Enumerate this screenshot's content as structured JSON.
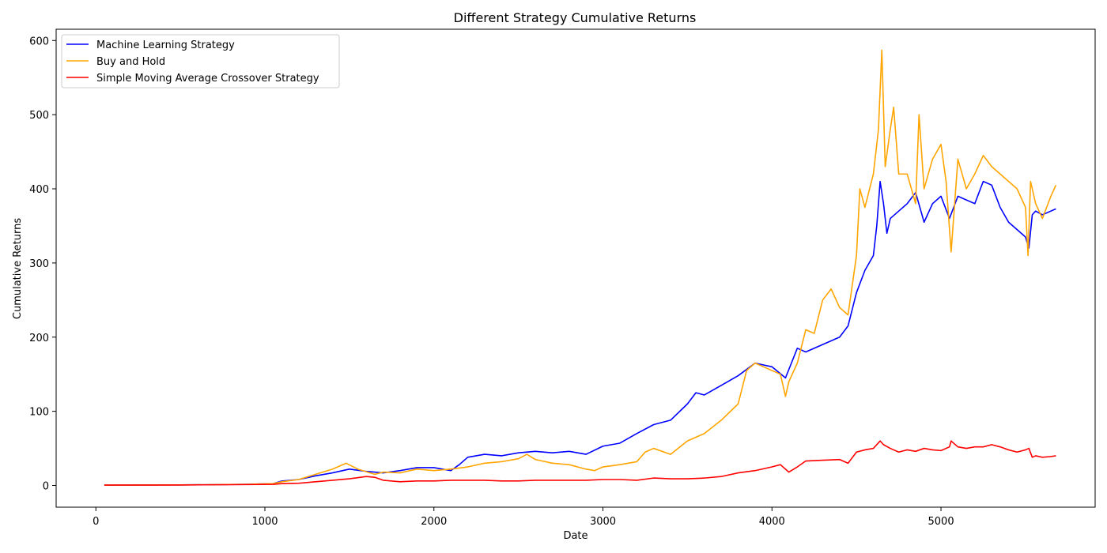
{
  "chart_data": {
    "type": "line",
    "title": "Different Strategy Cumulative Returns",
    "xlabel": "Date",
    "ylabel": "Cumulative Returns",
    "xlim": [
      -235,
      5912
    ],
    "ylim": [
      -29.3,
      615.2
    ],
    "xticks": [
      0,
      1000,
      2000,
      3000,
      4000,
      5000
    ],
    "yticks": [
      0,
      100,
      200,
      300,
      400,
      500,
      600
    ],
    "grid": false,
    "legend_position": "upper left",
    "series": [
      {
        "name": "Machine Learning Strategy",
        "color": "#0000ff",
        "x": [
          50,
          500,
          900,
          1050,
          1100,
          1200,
          1300,
          1400,
          1500,
          1600,
          1700,
          1800,
          1900,
          2000,
          2100,
          2150,
          2200,
          2300,
          2400,
          2500,
          2600,
          2700,
          2800,
          2900,
          3000,
          3100,
          3200,
          3300,
          3400,
          3500,
          3550,
          3600,
          3700,
          3800,
          3900,
          4000,
          4080,
          4150,
          4200,
          4300,
          4400,
          4450,
          4500,
          4550,
          4600,
          4620,
          4640,
          4660,
          4680,
          4700,
          4750,
          4800,
          4850,
          4900,
          4950,
          5000,
          5050,
          5100,
          5150,
          5200,
          5250,
          5300,
          5350,
          5400,
          5450,
          5500,
          5520,
          5540,
          5560,
          5600,
          5650,
          5680
        ],
        "y": [
          0.5,
          0.7,
          1.5,
          2.5,
          6,
          8,
          13,
          17,
          22,
          19,
          17,
          20,
          24,
          24,
          20,
          28,
          38,
          42,
          40,
          44,
          46,
          44,
          46,
          42,
          53,
          57,
          70,
          82,
          88,
          110,
          125,
          122,
          135,
          148,
          165,
          160,
          145,
          185,
          180,
          190,
          200,
          215,
          260,
          290,
          310,
          350,
          410,
          380,
          340,
          360,
          370,
          380,
          395,
          355,
          380,
          390,
          360,
          390,
          385,
          380,
          410,
          405,
          375,
          355,
          345,
          335,
          320,
          365,
          370,
          365,
          370,
          373
        ]
      },
      {
        "name": "Buy and Hold",
        "color": "#ffa500",
        "x": [
          50,
          500,
          900,
          1050,
          1100,
          1200,
          1300,
          1400,
          1480,
          1550,
          1650,
          1700,
          1800,
          1900,
          2000,
          2100,
          2200,
          2300,
          2400,
          2500,
          2550,
          2600,
          2700,
          2800,
          2900,
          2950,
          3000,
          3100,
          3200,
          3250,
          3300,
          3400,
          3500,
          3600,
          3700,
          3800,
          3850,
          3900,
          3950,
          4000,
          4050,
          4080,
          4100,
          4150,
          4200,
          4250,
          4300,
          4350,
          4400,
          4450,
          4500,
          4520,
          4550,
          4600,
          4630,
          4650,
          4670,
          4700,
          4720,
          4750,
          4800,
          4850,
          4870,
          4900,
          4950,
          5000,
          5030,
          5060,
          5100,
          5150,
          5200,
          5250,
          5300,
          5350,
          5400,
          5450,
          5500,
          5515,
          5530,
          5560,
          5600,
          5650,
          5680
        ],
        "y": [
          0.5,
          0.7,
          1.5,
          2.5,
          5,
          8,
          15,
          22,
          30,
          22,
          15,
          18,
          17,
          22,
          20,
          22,
          25,
          30,
          32,
          36,
          42,
          35,
          30,
          28,
          22,
          20,
          25,
          28,
          32,
          45,
          50,
          42,
          60,
          70,
          88,
          110,
          155,
          165,
          160,
          155,
          150,
          120,
          140,
          165,
          210,
          205,
          250,
          265,
          240,
          230,
          310,
          400,
          375,
          420,
          480,
          587,
          430,
          480,
          510,
          420,
          420,
          380,
          500,
          400,
          440,
          460,
          410,
          315,
          440,
          400,
          420,
          445,
          430,
          420,
          410,
          400,
          375,
          310,
          410,
          380,
          360,
          390,
          405
        ]
      },
      {
        "name": "Simple Moving Average Crossover Strategy",
        "color": "#ff0000",
        "x": [
          50,
          500,
          900,
          1050,
          1100,
          1200,
          1300,
          1400,
          1500,
          1600,
          1650,
          1700,
          1800,
          1900,
          2000,
          2100,
          2200,
          2300,
          2400,
          2500,
          2600,
          2700,
          2800,
          2900,
          3000,
          3100,
          3200,
          3300,
          3400,
          3500,
          3600,
          3700,
          3800,
          3900,
          4000,
          4050,
          4100,
          4150,
          4200,
          4300,
          4400,
          4450,
          4500,
          4550,
          4600,
          4640,
          4660,
          4700,
          4750,
          4800,
          4850,
          4900,
          4950,
          5000,
          5050,
          5060,
          5100,
          5150,
          5200,
          5250,
          5300,
          5350,
          5400,
          5450,
          5500,
          5520,
          5540,
          5560,
          5600,
          5650,
          5680
        ],
        "y": [
          0.5,
          0.6,
          1.2,
          1.5,
          2.5,
          3,
          5,
          7,
          9,
          12,
          11,
          7,
          5,
          6,
          6,
          7,
          7,
          7,
          6,
          6,
          7,
          7,
          7,
          7,
          8,
          8,
          7,
          10,
          9,
          9,
          10,
          12,
          17,
          20,
          25,
          28,
          18,
          25,
          33,
          34,
          35,
          30,
          45,
          48,
          50,
          60,
          55,
          50,
          45,
          48,
          46,
          50,
          48,
          47,
          52,
          60,
          52,
          50,
          52,
          52,
          55,
          52,
          48,
          45,
          48,
          50,
          38,
          40,
          38,
          39,
          40
        ]
      }
    ]
  }
}
